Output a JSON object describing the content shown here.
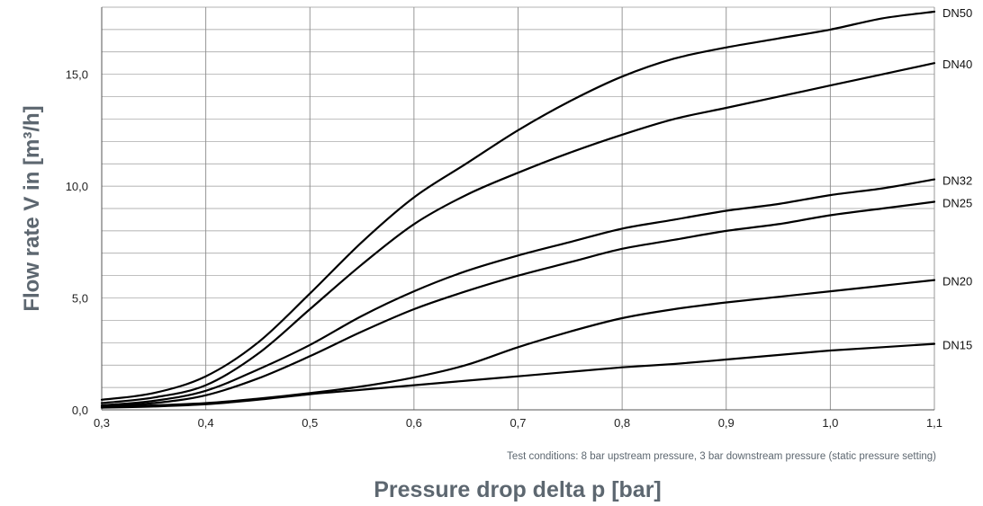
{
  "chart_data": {
    "type": "line",
    "title": "",
    "xlabel": "Pressure drop delta p [bar]",
    "ylabel": "Flow rate V in [m³/h]",
    "note": "Test conditions: 8 bar upstream pressure, 3 bar downstream pressure (static pressure setting)",
    "xlim": [
      0.3,
      1.1
    ],
    "ylim": [
      0,
      18
    ],
    "x_ticks": [
      "0,3",
      "0,4",
      "0,5",
      "0,6",
      "0,7",
      "0,8",
      "0,9",
      "1,0",
      "1,1"
    ],
    "y_ticks": [
      "0,0",
      "5,0",
      "10,0",
      "15,0"
    ],
    "grid": true,
    "series": [
      {
        "name": "DN50",
        "x": [
          0.3,
          0.35,
          0.4,
          0.45,
          0.5,
          0.55,
          0.6,
          0.65,
          0.7,
          0.75,
          0.8,
          0.85,
          0.9,
          0.95,
          1.0,
          1.05,
          1.1
        ],
        "values": [
          0.45,
          0.75,
          1.5,
          3.0,
          5.2,
          7.5,
          9.5,
          11.0,
          12.5,
          13.8,
          14.9,
          15.7,
          16.2,
          16.6,
          17.0,
          17.5,
          17.8
        ]
      },
      {
        "name": "DN40",
        "x": [
          0.3,
          0.35,
          0.4,
          0.45,
          0.5,
          0.55,
          0.6,
          0.65,
          0.7,
          0.75,
          0.8,
          0.85,
          0.9,
          0.95,
          1.0,
          1.05,
          1.1
        ],
        "values": [
          0.3,
          0.55,
          1.1,
          2.5,
          4.5,
          6.5,
          8.3,
          9.6,
          10.6,
          11.5,
          12.3,
          13.0,
          13.5,
          14.0,
          14.5,
          15.0,
          15.5
        ]
      },
      {
        "name": "DN32",
        "x": [
          0.3,
          0.35,
          0.4,
          0.45,
          0.5,
          0.55,
          0.6,
          0.65,
          0.7,
          0.75,
          0.8,
          0.85,
          0.9,
          0.95,
          1.0,
          1.05,
          1.1
        ],
        "values": [
          0.2,
          0.4,
          0.85,
          1.8,
          2.9,
          4.2,
          5.3,
          6.2,
          6.9,
          7.5,
          8.1,
          8.5,
          8.9,
          9.2,
          9.6,
          9.9,
          10.3
        ]
      },
      {
        "name": "DN25",
        "x": [
          0.3,
          0.35,
          0.4,
          0.45,
          0.5,
          0.55,
          0.6,
          0.65,
          0.7,
          0.75,
          0.8,
          0.85,
          0.9,
          0.95,
          1.0,
          1.05,
          1.1
        ],
        "values": [
          0.15,
          0.3,
          0.65,
          1.4,
          2.4,
          3.5,
          4.5,
          5.3,
          6.0,
          6.6,
          7.2,
          7.6,
          8.0,
          8.3,
          8.7,
          9.0,
          9.3
        ]
      },
      {
        "name": "DN20",
        "x": [
          0.3,
          0.35,
          0.4,
          0.45,
          0.5,
          0.55,
          0.6,
          0.65,
          0.7,
          0.75,
          0.8,
          0.85,
          0.9,
          0.95,
          1.0,
          1.05,
          1.1
        ],
        "values": [
          0.1,
          0.2,
          0.3,
          0.5,
          0.75,
          1.05,
          1.45,
          2.0,
          2.8,
          3.5,
          4.1,
          4.5,
          4.8,
          5.05,
          5.3,
          5.55,
          5.8
        ]
      },
      {
        "name": "DN15",
        "x": [
          0.3,
          0.35,
          0.4,
          0.45,
          0.5,
          0.55,
          0.6,
          0.65,
          0.7,
          0.75,
          0.8,
          0.85,
          0.9,
          0.95,
          1.0,
          1.05,
          1.1
        ],
        "values": [
          0.1,
          0.15,
          0.25,
          0.45,
          0.7,
          0.9,
          1.1,
          1.3,
          1.5,
          1.7,
          1.9,
          2.05,
          2.25,
          2.45,
          2.65,
          2.8,
          2.95
        ]
      }
    ]
  }
}
